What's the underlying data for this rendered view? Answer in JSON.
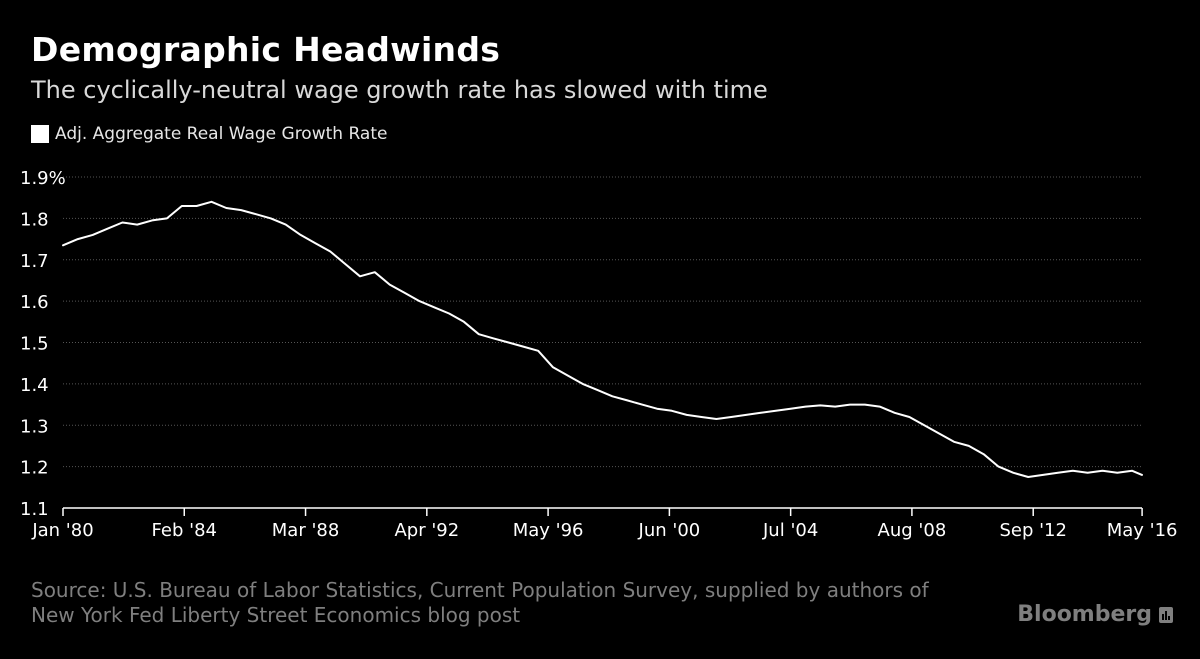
{
  "title": "Demographic Headwinds",
  "subtitle": "The cyclically-neutral wage growth rate has slowed with time",
  "source_line1": "Source: U.S. Bureau of Labor Statistics, Current Population Survey, supplied by authors of",
  "source_line2": "New York Fed Liberty Street Economics blog post",
  "brand": "Bloomberg",
  "brand_icon": "bloomberg-bars-icon",
  "colors": {
    "background": "#000000",
    "line": "#ffffff",
    "grid": "#555555",
    "axis": "#ffffff",
    "muted_text": "#7f7f7f"
  },
  "chart_data": {
    "type": "line",
    "title": "Demographic Headwinds",
    "subtitle": "The cyclically-neutral wage growth rate has slowed with time",
    "xlabel": "",
    "ylabel": "",
    "grid": true,
    "legend_position": "top-left",
    "x_range": [
      1980.0,
      2016.33
    ],
    "y_range": [
      1.1,
      1.9
    ],
    "y_ticks": [
      1.1,
      1.2,
      1.3,
      1.4,
      1.5,
      1.6,
      1.7,
      1.8,
      1.9
    ],
    "y_tick_labels": [
      "1.1",
      "1.2",
      "1.3",
      "1.4",
      "1.5",
      "1.6",
      "1.7",
      "1.8",
      "1.9%"
    ],
    "x_ticks": [
      1980.0,
      1984.083,
      1988.167,
      1992.25,
      1996.333,
      2000.417,
      2004.5,
      2008.583,
      2012.667,
      2016.333
    ],
    "x_tick_labels": [
      "Jan '80",
      "Feb '84",
      "Mar '88",
      "Apr '92",
      "May '96",
      "Jun '00",
      "Jul '04",
      "Aug '08",
      "Sep '12",
      "May '16"
    ],
    "series": [
      {
        "name": "Adj. Aggregate Real Wage Growth Rate",
        "x": [
          1980.0,
          1980.5,
          1981.0,
          1981.5,
          1982.0,
          1982.5,
          1983.0,
          1983.5,
          1984.0,
          1984.5,
          1985.0,
          1985.5,
          1986.0,
          1986.5,
          1987.0,
          1987.5,
          1988.0,
          1988.5,
          1989.0,
          1989.5,
          1990.0,
          1990.5,
          1991.0,
          1991.5,
          1992.0,
          1992.5,
          1993.0,
          1993.5,
          1994.0,
          1994.5,
          1995.0,
          1995.5,
          1996.0,
          1996.5,
          1997.0,
          1997.5,
          1998.0,
          1998.5,
          1999.0,
          1999.5,
          2000.0,
          2000.5,
          2001.0,
          2001.5,
          2002.0,
          2002.5,
          2003.0,
          2003.5,
          2004.0,
          2004.5,
          2005.0,
          2005.5,
          2006.0,
          2006.5,
          2007.0,
          2007.5,
          2008.0,
          2008.5,
          2009.0,
          2009.5,
          2010.0,
          2010.5,
          2011.0,
          2011.5,
          2012.0,
          2012.5,
          2013.0,
          2013.5,
          2014.0,
          2014.5,
          2015.0,
          2015.5,
          2016.0,
          2016.33
        ],
        "values": [
          1.735,
          1.75,
          1.76,
          1.775,
          1.79,
          1.785,
          1.795,
          1.8,
          1.83,
          1.83,
          1.84,
          1.825,
          1.82,
          1.81,
          1.8,
          1.785,
          1.76,
          1.74,
          1.72,
          1.69,
          1.66,
          1.67,
          1.64,
          1.62,
          1.6,
          1.585,
          1.57,
          1.55,
          1.52,
          1.51,
          1.5,
          1.49,
          1.48,
          1.44,
          1.42,
          1.4,
          1.385,
          1.37,
          1.36,
          1.35,
          1.34,
          1.335,
          1.325,
          1.32,
          1.315,
          1.32,
          1.325,
          1.33,
          1.335,
          1.34,
          1.345,
          1.348,
          1.345,
          1.35,
          1.35,
          1.345,
          1.33,
          1.32,
          1.3,
          1.28,
          1.26,
          1.25,
          1.23,
          1.2,
          1.185,
          1.175,
          1.18,
          1.185,
          1.19,
          1.185,
          1.19,
          1.185,
          1.19,
          1.18
        ]
      }
    ]
  }
}
